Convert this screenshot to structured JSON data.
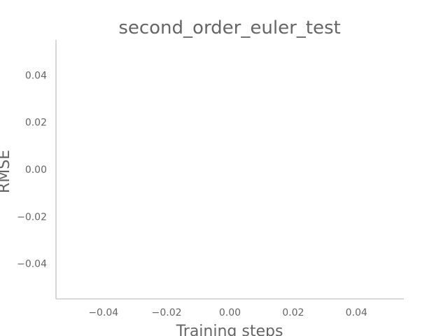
{
  "chart_data": {
    "type": "line",
    "title": "second_order_euler_test",
    "xlabel": "Training steps",
    "ylabel": "RMSE",
    "xlim": [
      -0.055,
      0.055
    ],
    "ylim": [
      -0.055,
      0.055
    ],
    "x_ticks": [
      {
        "value": -0.04,
        "label": "−0.04"
      },
      {
        "value": -0.02,
        "label": "−0.02"
      },
      {
        "value": 0.0,
        "label": "0.00"
      },
      {
        "value": 0.02,
        "label": "0.02"
      },
      {
        "value": 0.04,
        "label": "0.04"
      }
    ],
    "y_ticks": [
      {
        "value": 0.04,
        "label": "0.04"
      },
      {
        "value": 0.02,
        "label": "0.02"
      },
      {
        "value": 0.0,
        "label": "0.00"
      },
      {
        "value": -0.02,
        "label": "−0.02"
      },
      {
        "value": -0.04,
        "label": "−0.04"
      }
    ],
    "series": [],
    "grid": false,
    "legend": "none",
    "colors": {
      "text": "#666666",
      "spine": "#cccccc",
      "background": "#ffffff"
    }
  }
}
